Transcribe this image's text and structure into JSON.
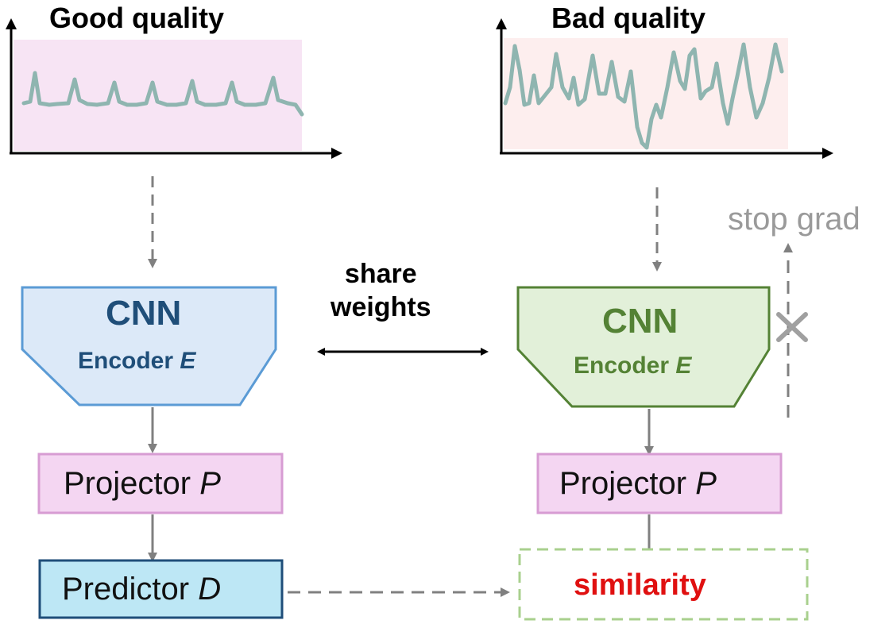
{
  "left": {
    "title": "Good quality",
    "encoder": {
      "title": "CNN",
      "subtitle": "Encoder",
      "symbol": "E"
    },
    "projector": {
      "label": "Projector",
      "symbol": "P"
    },
    "predictor": {
      "label": "Predictor",
      "symbol": "D"
    }
  },
  "right": {
    "title": "Bad quality",
    "encoder": {
      "title": "CNN",
      "subtitle": "Encoder",
      "symbol": "E"
    },
    "projector": {
      "label": "Projector",
      "symbol": "P"
    },
    "similarity": "similarity",
    "stop_grad": "stop grad"
  },
  "share_weights": {
    "line1": "share",
    "line2": "weights"
  },
  "colors": {
    "signal_line": "#8fb5b0",
    "good_bg": "#f7e4f4",
    "bad_bg": "#fdeeee",
    "encoder_left_fill": "#dce9f8",
    "encoder_left_stroke": "#5b9bd5",
    "encoder_left_text": "#1f4e79",
    "encoder_right_fill": "#e2f0d9",
    "encoder_right_stroke": "#548235",
    "encoder_right_text": "#548235",
    "projector_fill": "#f4d6f2",
    "projector_stroke": "#d79cd3",
    "predictor_fill": "#bde7f5",
    "predictor_stroke": "#1f4e79",
    "similarity_stroke": "#a9d08e",
    "similarity_text": "#e01010",
    "arrow_gray": "#808080",
    "stop_grad_gray": "#9a9a9a"
  }
}
